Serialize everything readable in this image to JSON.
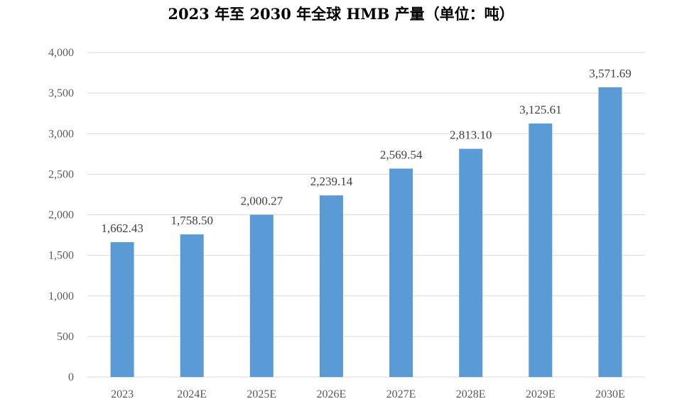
{
  "chart_data": {
    "type": "bar",
    "title": "2023 年至 2030 年全球 HMB 产量（单位：吨）",
    "categories": [
      "2023",
      "2024E",
      "2025E",
      "2026E",
      "2027E",
      "2028E",
      "2029E",
      "2030E"
    ],
    "series": [
      {
        "values": [
          1662.43,
          1758.5,
          2000.27,
          2239.14,
          2569.54,
          2813.1,
          3125.61,
          3571.69
        ]
      }
    ],
    "data_labels": [
      "1,662.43",
      "1,758.50",
      "2,000.27",
      "2,239.14",
      "2,569.54",
      "2,813.10",
      "3,125.61",
      "3,571.69"
    ],
    "y_ticks": [
      "0",
      "500",
      "1,000",
      "1,500",
      "2,000",
      "2,500",
      "3,000",
      "3,500",
      "4,000"
    ],
    "ylim": [
      0,
      4000
    ],
    "xlabel": "",
    "ylabel": "",
    "grid": true,
    "legend": "none",
    "bar_color": "#5B9BD5",
    "grid_color": "#D9D9D9"
  }
}
